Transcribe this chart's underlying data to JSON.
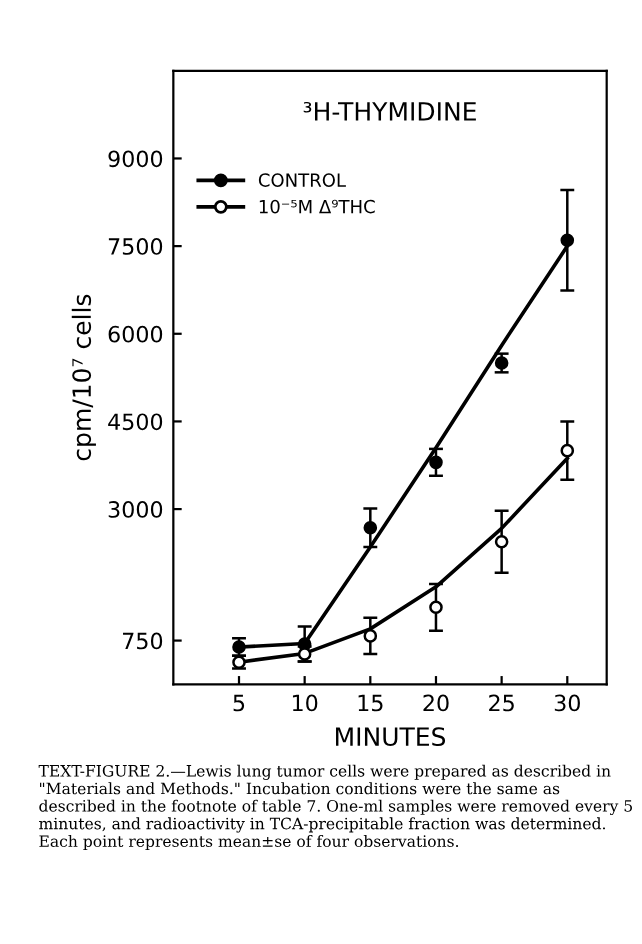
{
  "chart_data": {
    "type": "scatter",
    "title": "³H-THYMIDINE",
    "xlabel": "MINUTES",
    "ylabel": "cpm/10⁷ cells",
    "x": [
      5,
      10,
      15,
      20,
      25,
      30
    ],
    "series": [
      {
        "name": "CONTROL",
        "marker": "circle",
        "color": "#000000",
        "values": [
          640,
          690,
          2680,
          3800,
          5500,
          7600
        ],
        "errors": [
          150,
          300,
          330,
          230,
          160,
          860
        ]
      },
      {
        "name": "10⁻⁵M Δ⁹THC",
        "marker": "circle",
        "color": "#ffffff",
        "values": [
          380,
          520,
          830,
          1320,
          2440,
          4000
        ],
        "errors": [
          110,
          130,
          310,
          400,
          530,
          500
        ]
      },
      {
        "type": "line",
        "color": "#000000",
        "x": [
          5,
          10,
          15,
          20,
          25,
          30
        ],
        "values": [
          640,
          700,
          2350,
          4050,
          5800,
          7500
        ]
      },
      {
        "type": "line",
        "color": "#000000",
        "x": [
          5,
          10,
          15,
          20,
          25,
          30
        ],
        "values": [
          380,
          530,
          950,
          1670,
          2670,
          3870
        ]
      }
    ],
    "xlim": [
      0,
      33
    ],
    "xticks": [
      5,
      10,
      15,
      20,
      25,
      30
    ],
    "ylim": [
      0,
      10500
    ],
    "yticks": [
      750,
      3000,
      4500,
      6000,
      7500,
      9000
    ],
    "marker": "none",
    "grid": false,
    "legend": "top left",
    "annotations": [
      "TEXT-FIGURE 2.—Lewis lung tumor cells were prepared as described in \"Materials and Methods.\" Incubation conditions were the same as described in the footnote of table 7. One-ml samples were removed every 5 minutes, and radioactivity in TCA-precipitable fraction was determined. Each point represents mean±se of four observations."
    ]
  }
}
